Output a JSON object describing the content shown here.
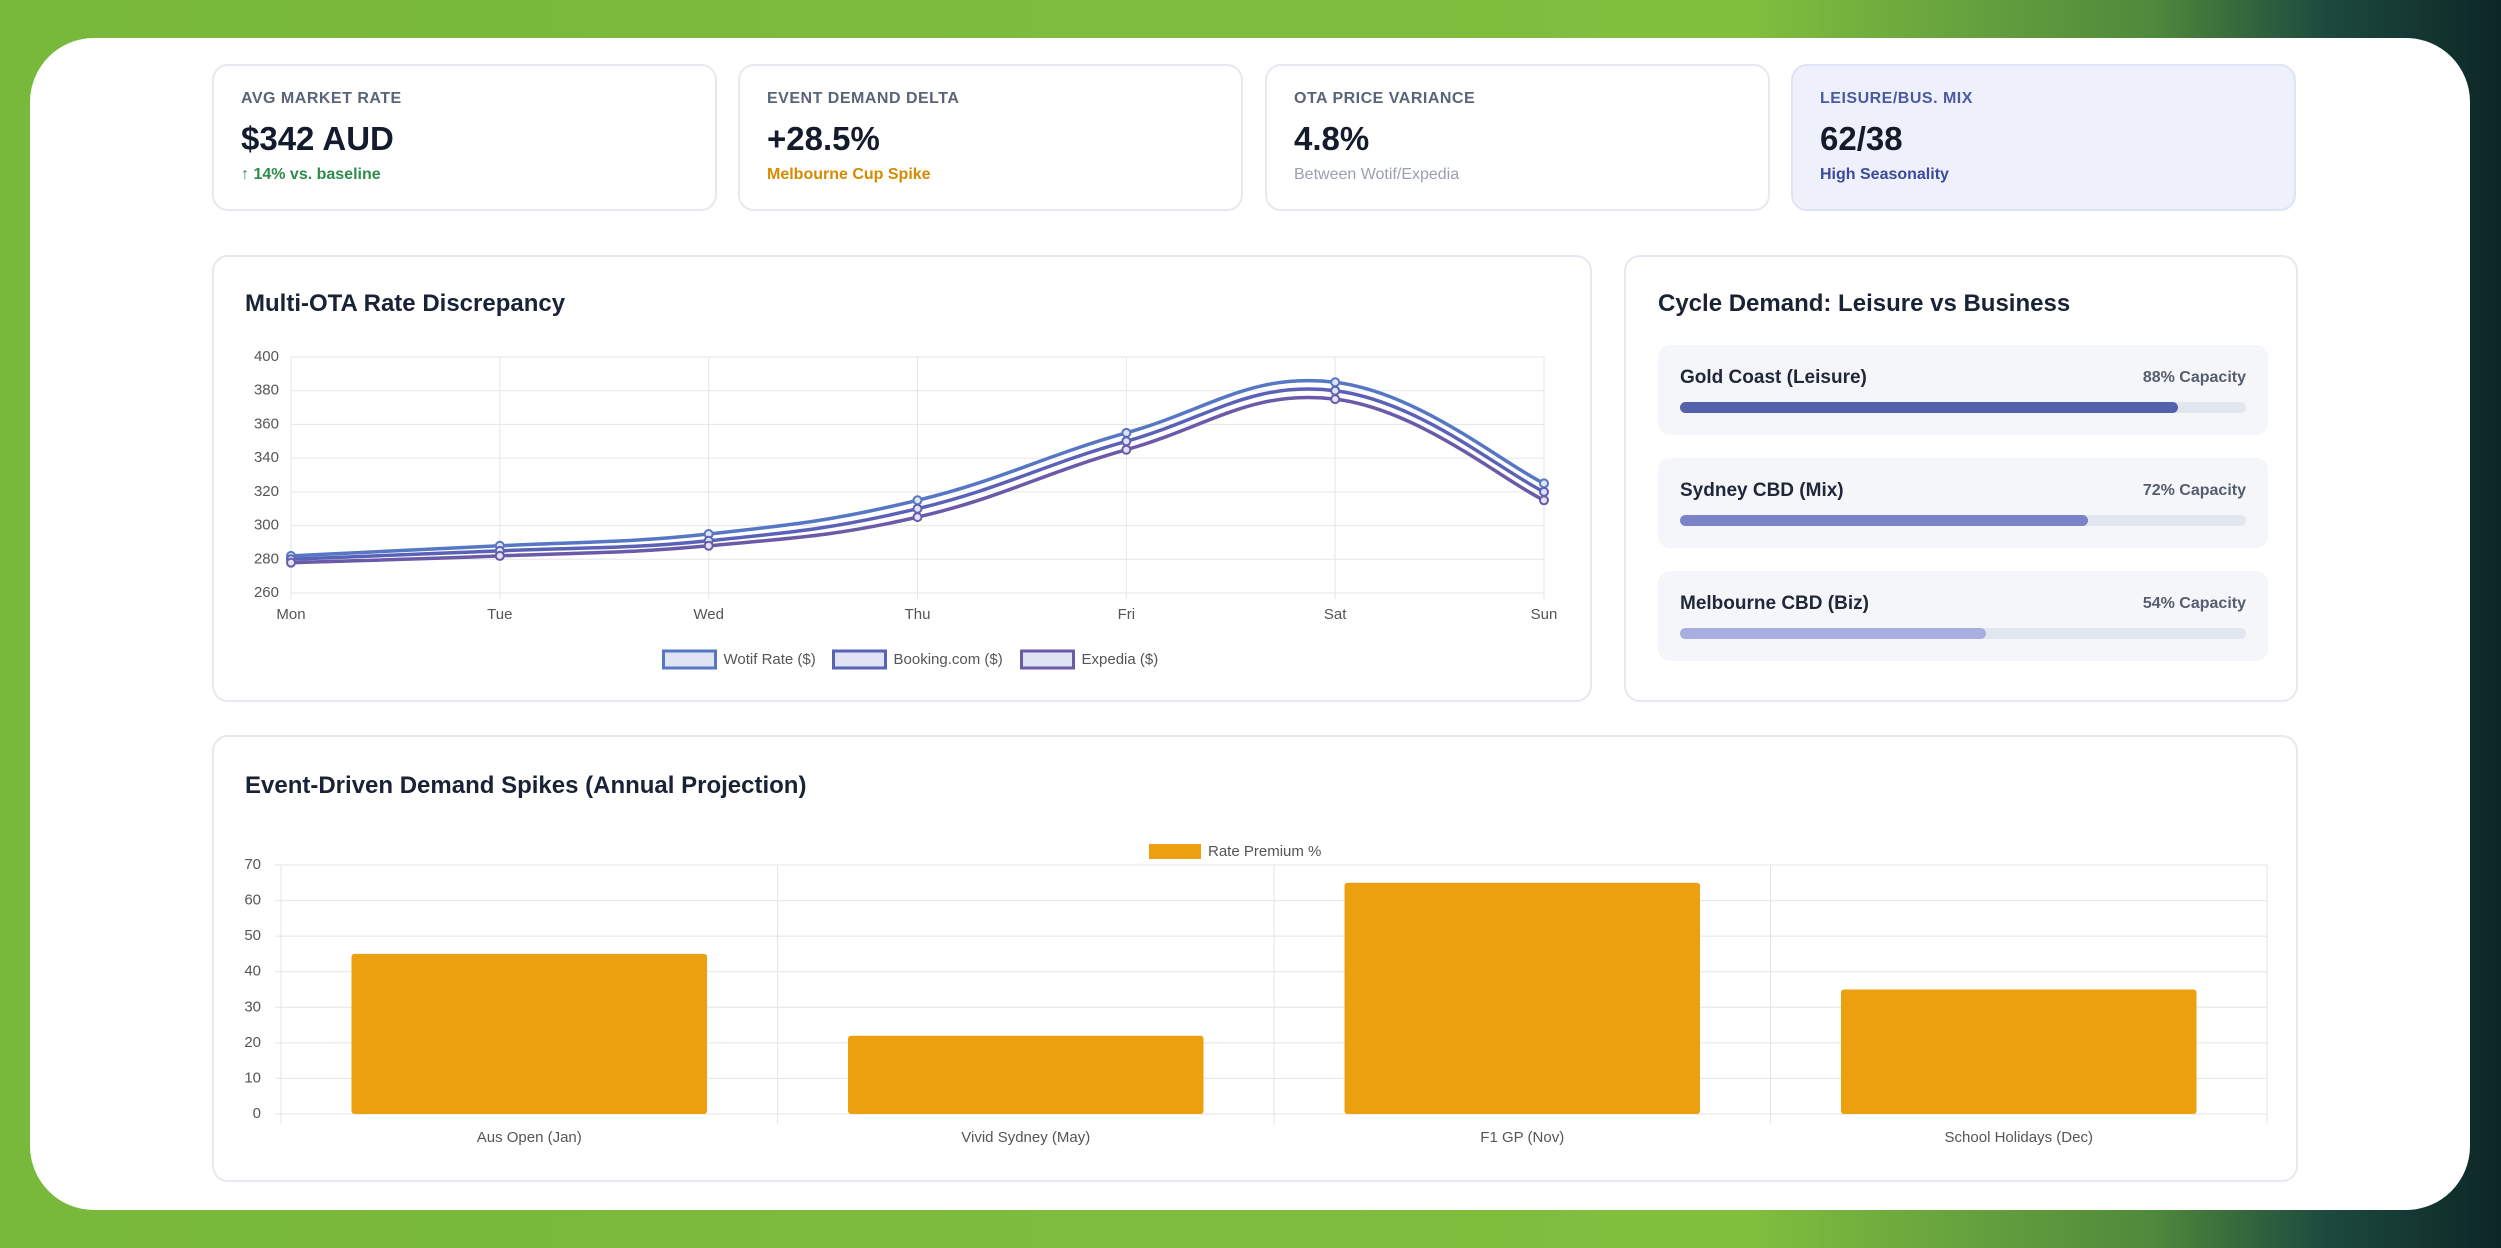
{
  "kpis": [
    {
      "label": "AVG MARKET RATE",
      "value": "$342 AUD",
      "note": "↑ 14% vs. baseline"
    },
    {
      "label": "EVENT DEMAND DELTA",
      "value": "+28.5%",
      "note": "Melbourne Cup Spike"
    },
    {
      "label": "OTA PRICE VARIANCE",
      "value": "4.8%",
      "note": "Between Wotif/Expedia"
    },
    {
      "label": "LEISURE/BUS. MIX",
      "value": "62/38",
      "note": "High Seasonality"
    }
  ],
  "chart_data": [
    {
      "type": "line",
      "title": "Multi-OTA Rate Discrepancy",
      "categories": [
        "Mon",
        "Tue",
        "Wed",
        "Thu",
        "Fri",
        "Sat",
        "Sun"
      ],
      "series": [
        {
          "name": "Wotif Rate ($)",
          "color": "#5577c4",
          "values": [
            282,
            288,
            295,
            315,
            355,
            385,
            325
          ]
        },
        {
          "name": "Booking.com ($)",
          "color": "#5a62b8",
          "values": [
            280,
            285,
            291,
            310,
            350,
            380,
            320
          ]
        },
        {
          "name": "Expedia ($)",
          "color": "#6a5aa8",
          "values": [
            278,
            282,
            288,
            305,
            345,
            375,
            315
          ]
        }
      ],
      "ylim": [
        260,
        400
      ],
      "yticks": [
        260,
        280,
        300,
        320,
        340,
        360,
        380,
        400
      ],
      "grid": true
    },
    {
      "type": "progress",
      "title": "Cycle Demand: Leisure vs Business",
      "categories": [
        "Gold Coast (Leisure)",
        "Sydney CBD (Mix)",
        "Melbourne CBD (Biz)"
      ],
      "values": [
        88,
        72,
        54
      ],
      "value_labels": [
        "88% Capacity",
        "72% Capacity",
        "54% Capacity"
      ],
      "colors": [
        "#5461ab",
        "#7b83c8",
        "#a9aee0"
      ],
      "xlim": [
        0,
        100
      ]
    },
    {
      "type": "bar",
      "title": "Event-Driven Demand Spikes (Annual Projection)",
      "categories": [
        "Aus Open (Jan)",
        "Vivid Sydney (May)",
        "F1 GP (Nov)",
        "School Holidays (Dec)"
      ],
      "series": [
        {
          "name": "Rate Premium %",
          "color": "#eca010",
          "values": [
            45,
            22,
            65,
            35
          ]
        }
      ],
      "ylim": [
        0,
        70
      ],
      "yticks": [
        0,
        10,
        20,
        30,
        40,
        50,
        60,
        70
      ],
      "grid": true
    }
  ]
}
